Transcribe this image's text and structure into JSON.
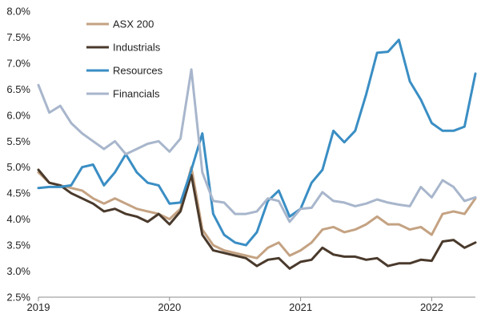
{
  "chart_data": {
    "type": "line",
    "title": "",
    "xlabel": "",
    "ylabel": "",
    "ylim": [
      0.025,
      0.08
    ],
    "y_ticks": [
      0.025,
      0.03,
      0.035,
      0.04,
      0.045,
      0.05,
      0.055,
      0.06,
      0.065,
      0.07,
      0.075,
      0.08
    ],
    "y_tick_labels": [
      "2.5%",
      "3.0%",
      "3.5%",
      "4.0%",
      "4.5%",
      "5.0%",
      "5.5%",
      "6.0%",
      "6.5%",
      "7.0%",
      "7.5%",
      "8.0%"
    ],
    "x_ticks": [
      "2019",
      "2020",
      "2021",
      "2022"
    ],
    "x_start": "2019-01",
    "x_end": "2022-05",
    "grid": false,
    "legend_position": "top-left",
    "x": [
      "2019-01",
      "2019-02",
      "2019-03",
      "2019-04",
      "2019-05",
      "2019-06",
      "2019-07",
      "2019-08",
      "2019-09",
      "2019-10",
      "2019-11",
      "2019-12",
      "2020-01",
      "2020-02",
      "2020-03",
      "2020-04",
      "2020-05",
      "2020-06",
      "2020-07",
      "2020-08",
      "2020-09",
      "2020-10",
      "2020-11",
      "2020-12",
      "2021-01",
      "2021-02",
      "2021-03",
      "2021-04",
      "2021-05",
      "2021-06",
      "2021-07",
      "2021-08",
      "2021-09",
      "2021-10",
      "2021-11",
      "2021-12",
      "2022-01",
      "2022-02",
      "2022-03",
      "2022-04",
      "2022-05"
    ],
    "series": [
      {
        "name": "ASX 200",
        "color": "#c4a282",
        "values": [
          0.049,
          0.047,
          0.0465,
          0.046,
          0.0455,
          0.044,
          0.043,
          0.044,
          0.043,
          0.042,
          0.0415,
          0.041,
          0.04,
          0.042,
          0.05,
          0.038,
          0.035,
          0.034,
          0.0335,
          0.033,
          0.0325,
          0.0345,
          0.0355,
          0.033,
          0.034,
          0.0355,
          0.038,
          0.0385,
          0.0375,
          0.038,
          0.039,
          0.0405,
          0.039,
          0.039,
          0.038,
          0.0385,
          0.037,
          0.041,
          0.0415,
          0.041,
          0.044
        ]
      },
      {
        "name": "Industrials",
        "color": "#4a3a2c",
        "values": [
          0.0495,
          0.047,
          0.0465,
          0.045,
          0.044,
          0.043,
          0.0415,
          0.042,
          0.041,
          0.0405,
          0.0395,
          0.041,
          0.039,
          0.0415,
          0.0485,
          0.037,
          0.034,
          0.0335,
          0.033,
          0.0325,
          0.031,
          0.0322,
          0.0325,
          0.0305,
          0.0318,
          0.0322,
          0.0345,
          0.0332,
          0.0328,
          0.0328,
          0.0322,
          0.0325,
          0.031,
          0.0315,
          0.0315,
          0.0322,
          0.032,
          0.0357,
          0.036,
          0.0345,
          0.0355
        ]
      },
      {
        "name": "Resources",
        "color": "#3a8ec4",
        "values": [
          0.046,
          0.0462,
          0.0462,
          0.0465,
          0.05,
          0.0505,
          0.0465,
          0.049,
          0.0525,
          0.049,
          0.047,
          0.0465,
          0.043,
          0.0432,
          0.0495,
          0.0565,
          0.041,
          0.037,
          0.0355,
          0.035,
          0.0375,
          0.0435,
          0.0455,
          0.0405,
          0.042,
          0.047,
          0.0495,
          0.057,
          0.0548,
          0.057,
          0.064,
          0.072,
          0.0722,
          0.0745,
          0.0665,
          0.063,
          0.0585,
          0.057,
          0.057,
          0.0578,
          0.068
        ]
      },
      {
        "name": "Financials",
        "color": "#a8b6cc",
        "values": [
          0.0658,
          0.0605,
          0.0618,
          0.0585,
          0.0565,
          0.055,
          0.0535,
          0.055,
          0.0525,
          0.0535,
          0.0545,
          0.055,
          0.053,
          0.0555,
          0.0688,
          0.049,
          0.0435,
          0.0432,
          0.041,
          0.041,
          0.0415,
          0.044,
          0.0435,
          0.0395,
          0.042,
          0.0422,
          0.0452,
          0.0435,
          0.0432,
          0.0425,
          0.043,
          0.0438,
          0.0432,
          0.0428,
          0.0425,
          0.0462,
          0.0442,
          0.0475,
          0.0462,
          0.0435,
          0.0442
        ]
      }
    ]
  }
}
